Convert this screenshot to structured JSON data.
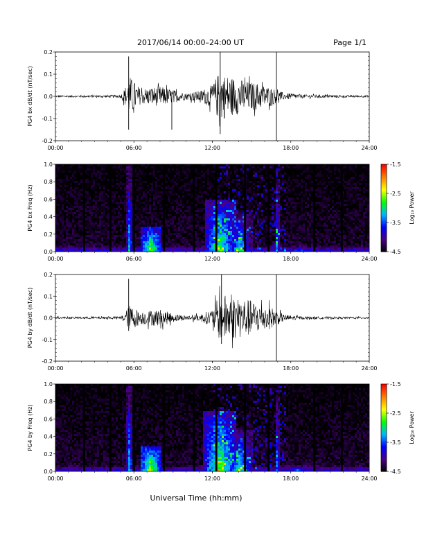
{
  "header": {
    "date_title": "2017/06/14  00:00–24:00 UT",
    "page_label": "Page 1/1"
  },
  "footer": {
    "xlabel": "Universal Time (hh:mm)"
  },
  "colorbar": {
    "label": "Log₁₀ Power",
    "ticks": [
      "-1.5",
      "-2.5",
      "-3.5",
      "-4.5"
    ],
    "range": [
      -4.5,
      -1.5
    ],
    "colors": [
      "#000000",
      "#4b0082",
      "#0000ff",
      "#00b4ff",
      "#00ff00",
      "#ffff00",
      "#ff8000",
      "#ff0000"
    ]
  },
  "chart_data": [
    {
      "type": "line",
      "ylabel": "PG4 bx dB/dt (nT/sec)",
      "xlim": [
        0,
        24
      ],
      "ylim": [
        -0.2,
        0.2
      ],
      "xticks": [
        "00:00",
        "06:00",
        "12:00",
        "18:00",
        "24:00"
      ],
      "yticks": [
        "0.2",
        "0.1",
        "0.0",
        "-0.1",
        "-0.2"
      ],
      "color": "#000000",
      "activity": [
        {
          "t": 0,
          "amp": 0.004
        },
        {
          "t": 5.0,
          "amp": 0.006
        },
        {
          "t": 5.4,
          "amp": 0.05
        },
        {
          "t": 5.7,
          "amp": 0.09
        },
        {
          "t": 6.5,
          "amp": 0.035
        },
        {
          "t": 8.0,
          "amp": 0.045
        },
        {
          "t": 9.0,
          "amp": 0.03
        },
        {
          "t": 10.0,
          "amp": 0.015
        },
        {
          "t": 11.0,
          "amp": 0.025
        },
        {
          "t": 12.0,
          "amp": 0.05
        },
        {
          "t": 12.5,
          "amp": 0.11
        },
        {
          "t": 13.5,
          "amp": 0.09
        },
        {
          "t": 14.5,
          "amp": 0.07
        },
        {
          "t": 15.5,
          "amp": 0.06
        },
        {
          "t": 16.5,
          "amp": 0.04
        },
        {
          "t": 17.5,
          "amp": 0.015
        },
        {
          "t": 19.0,
          "amp": 0.008
        },
        {
          "t": 24.0,
          "amp": 0.004
        }
      ],
      "spikes": [
        {
          "t": 5.6,
          "min": -0.15,
          "max": 0.18
        },
        {
          "t": 8.9,
          "min": -0.15,
          "max": 0.02
        },
        {
          "t": 12.6,
          "min": -0.17,
          "max": 0.21
        },
        {
          "t": 16.9,
          "min": -0.21,
          "max": 0.2
        }
      ]
    },
    {
      "type": "heatmap",
      "ylabel": "PG4 bx Freq (Hz)",
      "xlim": [
        0,
        24
      ],
      "ylim": [
        0,
        1.0
      ],
      "xticks": [
        "00:00",
        "06:00",
        "12:00",
        "18:00",
        "24:00"
      ],
      "yticks": [
        "1.0",
        "0.8",
        "0.6",
        "0.4",
        "0.2",
        "0.0"
      ],
      "gaps": [
        2.2,
        4.2,
        6.0,
        8.3,
        10.6,
        12.3,
        14.5,
        16.3,
        19.8,
        21.9
      ],
      "bands": [
        {
          "t": 5.6,
          "w": 0.25,
          "fmax": 1.0,
          "lvl": -2.9
        },
        {
          "t": 7.2,
          "w": 0.8,
          "fmax": 0.3,
          "lvl": -2.4
        },
        {
          "t": 12.5,
          "w": 1.2,
          "fmax": 0.6,
          "lvl": -2.6
        },
        {
          "t": 14.0,
          "w": 1.0,
          "fmax": 0.5,
          "lvl": -2.9
        },
        {
          "t": 16.9,
          "w": 0.2,
          "fmax": 1.0,
          "lvl": -3.0
        },
        {
          "t": 18.5,
          "w": 1.5,
          "fmax": 0.1,
          "lvl": -3.2
        }
      ]
    },
    {
      "type": "line",
      "ylabel": "PG4 by dB/dt (nT/sec)",
      "xlim": [
        0,
        24
      ],
      "ylim": [
        -0.2,
        0.2
      ],
      "xticks": [
        "00:00",
        "06:00",
        "12:00",
        "18:00",
        "24:00"
      ],
      "yticks": [
        "0.2",
        "0.1",
        "0.0",
        "-0.1",
        "-0.2"
      ],
      "color": "#000000",
      "activity": [
        {
          "t": 0,
          "amp": 0.004
        },
        {
          "t": 5.0,
          "amp": 0.006
        },
        {
          "t": 5.4,
          "amp": 0.035
        },
        {
          "t": 5.7,
          "amp": 0.06
        },
        {
          "t": 6.5,
          "amp": 0.03
        },
        {
          "t": 8.0,
          "amp": 0.04
        },
        {
          "t": 9.0,
          "amp": 0.02
        },
        {
          "t": 10.0,
          "amp": 0.01
        },
        {
          "t": 11.0,
          "amp": 0.015
        },
        {
          "t": 12.0,
          "amp": 0.04
        },
        {
          "t": 12.6,
          "amp": 0.11
        },
        {
          "t": 13.5,
          "amp": 0.1
        },
        {
          "t": 14.5,
          "amp": 0.09
        },
        {
          "t": 15.5,
          "amp": 0.07
        },
        {
          "t": 16.5,
          "amp": 0.05
        },
        {
          "t": 17.5,
          "amp": 0.015
        },
        {
          "t": 19.0,
          "amp": 0.006
        },
        {
          "t": 24.0,
          "amp": 0.004
        }
      ],
      "spikes": [
        {
          "t": 5.6,
          "min": -0.06,
          "max": 0.18
        },
        {
          "t": 12.7,
          "min": -0.12,
          "max": 0.21
        },
        {
          "t": 16.9,
          "min": -0.21,
          "max": 0.2
        }
      ]
    },
    {
      "type": "heatmap",
      "ylabel": "PG4 by Freq (Hz)",
      "xlim": [
        0,
        24
      ],
      "ylim": [
        0,
        1.0
      ],
      "xticks": [
        "00:00",
        "06:00",
        "12:00",
        "18:00",
        "24:00"
      ],
      "yticks": [
        "1.0",
        "0.8",
        "0.6",
        "0.4",
        "0.2",
        "0.0"
      ],
      "gaps": [
        2.2,
        4.2,
        6.0,
        8.3,
        10.6,
        12.3,
        14.5,
        16.3,
        19.8,
        21.9
      ],
      "bands": [
        {
          "t": 5.6,
          "w": 0.25,
          "fmax": 1.0,
          "lvl": -2.9
        },
        {
          "t": 7.2,
          "w": 0.8,
          "fmax": 0.3,
          "lvl": -2.3
        },
        {
          "t": 12.5,
          "w": 1.3,
          "fmax": 0.7,
          "lvl": -2.5
        },
        {
          "t": 14.0,
          "w": 1.0,
          "fmax": 0.5,
          "lvl": -2.8
        },
        {
          "t": 16.9,
          "w": 0.2,
          "fmax": 1.0,
          "lvl": -3.0
        },
        {
          "t": 18.5,
          "w": 1.5,
          "fmax": 0.1,
          "lvl": -3.1
        }
      ]
    }
  ]
}
